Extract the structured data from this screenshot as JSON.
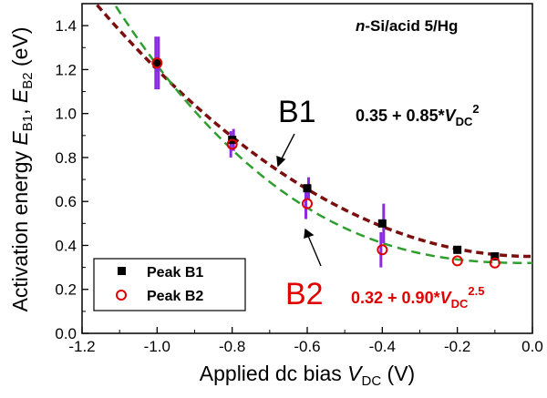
{
  "chart_data": {
    "type": "scatter",
    "x_label": {
      "prefix": "Applied dc bias ",
      "var": "V",
      "sub": "DC",
      "suffix": "  (V)"
    },
    "y_label": {
      "prefix": "Activation energy ",
      "var1": "E",
      "sub1": "B1",
      "sep": ", ",
      "var2": "E",
      "sub2": "B2",
      "suffix": " (eV)"
    },
    "xlim": [
      -1.2,
      0.0
    ],
    "ylim": [
      0.0,
      1.5
    ],
    "x_ticks": [
      -1.2,
      -1.0,
      -0.8,
      -0.6,
      -0.4,
      -0.2,
      0.0
    ],
    "x_tick_labels": [
      "-1.2",
      "-1.0",
      "-0.8",
      "-0.6",
      "-0.4",
      "-0.2",
      "0.0"
    ],
    "y_ticks": [
      0.0,
      0.2,
      0.4,
      0.6,
      0.8,
      1.0,
      1.2,
      1.4
    ],
    "y_tick_labels": [
      "0.0",
      "0.2",
      "0.4",
      "0.6",
      "0.8",
      "1.0",
      "1.2",
      "1.4"
    ],
    "sample_label": {
      "italic": "n",
      "rest": "-Si/acid 5/Hg"
    },
    "series": [
      {
        "name": "Peak B1",
        "marker": "square",
        "color": "#000000",
        "x": [
          -1.0,
          -0.8,
          -0.6,
          -0.4,
          -0.2,
          -0.1
        ],
        "y": [
          1.23,
          0.88,
          0.66,
          0.5,
          0.38,
          0.35
        ],
        "err": [
          0.12,
          0.05,
          0.05,
          0.09,
          0.0,
          0.0
        ]
      },
      {
        "name": "Peak B2",
        "marker": "open-circle",
        "color": "#e00000",
        "x": [
          -1.0,
          -0.8,
          -0.6,
          -0.4,
          -0.2,
          -0.1
        ],
        "y": [
          1.23,
          0.86,
          0.59,
          0.38,
          0.33,
          0.32
        ],
        "err": [
          0.12,
          0.06,
          0.07,
          0.08,
          0.0,
          0.0
        ]
      }
    ],
    "error_bar_color": "#8a2be2",
    "fits": [
      {
        "name": "B1",
        "a": 0.35,
        "b": 0.85,
        "power": 2,
        "color": "#7b0f0f",
        "style": "dashed",
        "formula": {
          "text": "0.35 + 0.85*",
          "var": "V",
          "sub": "DC",
          "sup": "2"
        },
        "label_color": "#000000"
      },
      {
        "name": "B2",
        "a": 0.32,
        "b": 0.9,
        "power": 2.5,
        "color": "#2e9e2e",
        "style": "dashed",
        "formula": {
          "text": "0.32 + 0.90*",
          "var": "V",
          "sub": "DC",
          "sup": "2.5"
        },
        "label_color": "#e00000"
      }
    ],
    "legend": {
      "position": "bottom-left",
      "entries": [
        "Peak B1",
        "Peak B2"
      ]
    }
  }
}
